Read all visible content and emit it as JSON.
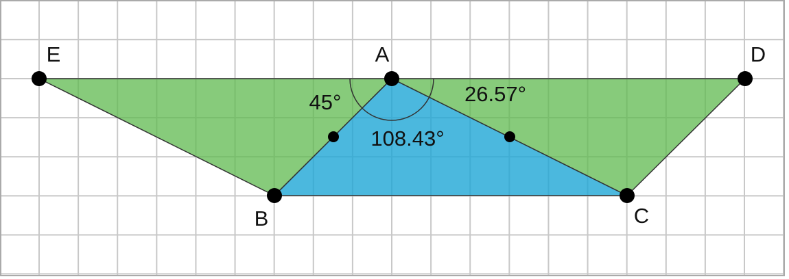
{
  "points": [
    {
      "label": "A"
    },
    {
      "label": "B"
    },
    {
      "label": "C"
    },
    {
      "label": "D"
    },
    {
      "label": "E"
    }
  ],
  "angles": [
    {
      "label": "45°"
    },
    {
      "label": "26.57°"
    },
    {
      "label": "108.43°"
    }
  ]
}
